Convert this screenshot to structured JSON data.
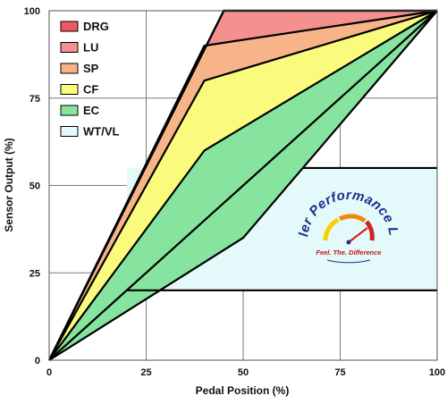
{
  "chart_data": {
    "type": "area",
    "title": "",
    "xlabel": "Pedal Position (%)",
    "ylabel": "Sensor Output (%)",
    "xlim": [
      0,
      100
    ],
    "ylim": [
      0,
      100
    ],
    "xticks": [
      0,
      25,
      50,
      75,
      100
    ],
    "yticks": [
      0,
      25,
      50,
      75,
      100
    ],
    "grid": true,
    "legend_position": "top-left",
    "series": [
      {
        "name": "DRG",
        "color": "#f0575f",
        "points": [
          [
            0,
            0
          ],
          [
            45,
            100
          ],
          [
            100,
            100
          ]
        ]
      },
      {
        "name": "LU",
        "color": "#f4908e",
        "points": [
          [
            0,
            0
          ],
          [
            40,
            90
          ],
          [
            100,
            100
          ]
        ]
      },
      {
        "name": "SP",
        "color": "#f8b489",
        "points": [
          [
            0,
            0
          ],
          [
            40,
            80
          ],
          [
            100,
            100
          ]
        ]
      },
      {
        "name": "CF",
        "color": "#fafa7c",
        "points": [
          [
            0,
            0
          ],
          [
            40,
            60
          ],
          [
            100,
            100
          ]
        ]
      },
      {
        "name": "EC",
        "color": "#87e49e",
        "points": [
          [
            0,
            0
          ],
          [
            50,
            35
          ],
          [
            100,
            100
          ]
        ]
      },
      {
        "name": "WT/VL",
        "color": "#e4f9f9",
        "points": []
      }
    ],
    "bounds": {
      "upper": [
        [
          0,
          0
        ],
        [
          45,
          100
        ],
        [
          100,
          100
        ]
      ],
      "lower": [
        [
          0,
          0
        ],
        [
          100,
          100
        ]
      ]
    },
    "wtvl_box": {
      "x": [
        20,
        100
      ],
      "y": [
        20,
        55
      ]
    },
    "wtvl_floor_end": 30
  },
  "logo": {
    "name": "Soler Performance LLC",
    "tagline": "Feel. The. Difference",
    "colors": {
      "text": "#1b2f8c",
      "gauge_red": "#d42020",
      "gauge_orange": "#f08a00",
      "gauge_yellow": "#f6d000"
    }
  }
}
